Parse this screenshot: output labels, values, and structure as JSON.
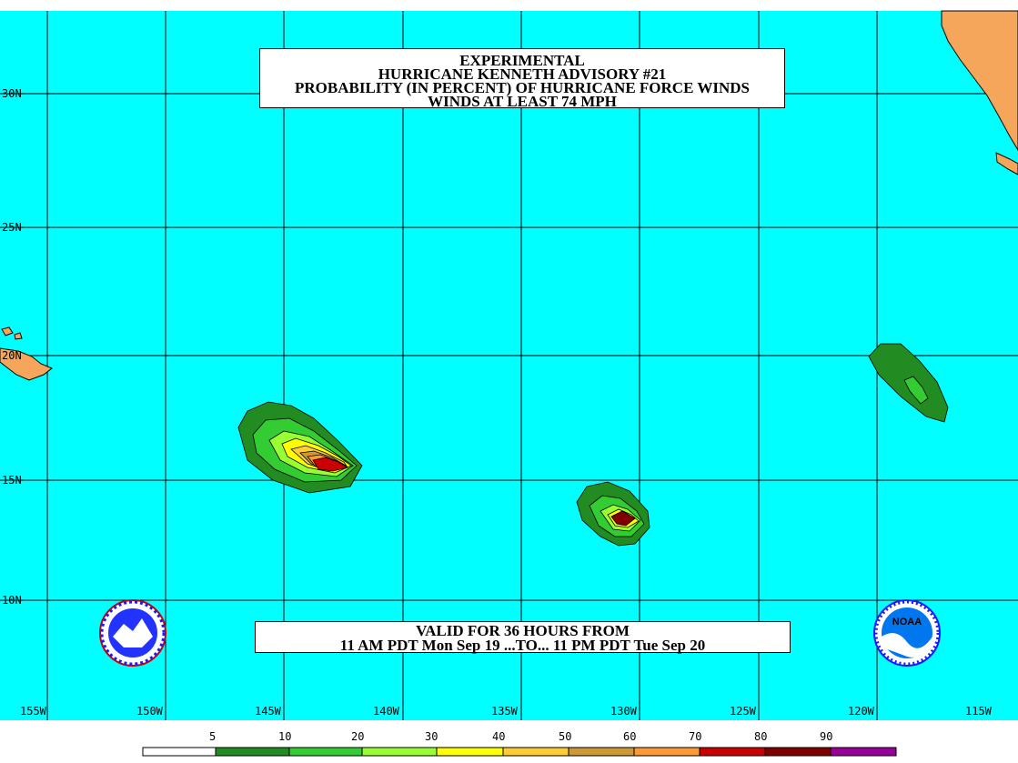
{
  "title": {
    "line1": "EXPERIMENTAL",
    "line2": "HURRICANE KENNETH ADVISORY #21",
    "line3": "PROBABILITY (IN PERCENT) OF HURRICANE FORCE WINDS",
    "line4": "WINDS AT LEAST 74 MPH"
  },
  "valid": {
    "line1": "VALID FOR 36 HOURS FROM",
    "line2": "11 AM PDT Mon Sep 19 ...TO... 11 PM PDT Tue Sep 20"
  },
  "latitude_labels": [
    "30N",
    "25N",
    "20N",
    "15N",
    "10N"
  ],
  "longitude_labels": [
    "155W",
    "150W",
    "145W",
    "140W",
    "135W",
    "130W",
    "125W",
    "120W",
    "115W"
  ],
  "legend": {
    "labels": [
      "5",
      "10",
      "20",
      "30",
      "40",
      "50",
      "60",
      "70",
      "80",
      "90"
    ],
    "colors": [
      "#ffffff",
      "#228b22",
      "#33cc33",
      "#99ff33",
      "#ffff00",
      "#ffcc33",
      "#cc9933",
      "#ff9933",
      "#cc0000",
      "#800000",
      "#990099"
    ]
  },
  "colors": {
    "ocean": "#00ffff",
    "land": "#f5a65b",
    "grid": "#000000"
  },
  "icons": {
    "left_logo": "nws-logo-icon",
    "right_logo": "noaa-logo-icon"
  },
  "right_logo_text": "NOAA"
}
